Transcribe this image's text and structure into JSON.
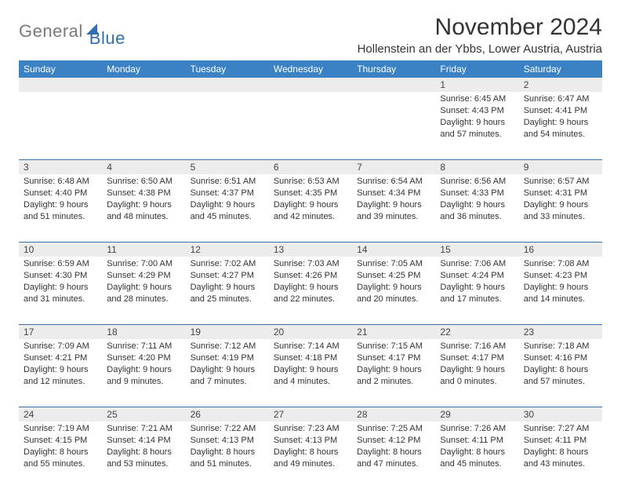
{
  "logo": {
    "text_gray": "General",
    "text_blue": "Blue"
  },
  "title": "November 2024",
  "location": "Hollenstein an der Ybbs, Lower Austria, Austria",
  "colors": {
    "header_bg": "#3b82c4",
    "header_fg": "#ffffff",
    "band_bg": "#ececec",
    "rule": "#3b6fa0",
    "text": "#333333",
    "logo_gray": "#7a7a7a",
    "logo_blue": "#2f6fb0"
  },
  "day_names": [
    "Sunday",
    "Monday",
    "Tuesday",
    "Wednesday",
    "Thursday",
    "Friday",
    "Saturday"
  ],
  "weeks": [
    {
      "nums": [
        "",
        "",
        "",
        "",
        "",
        "1",
        "2"
      ],
      "cells": [
        null,
        null,
        null,
        null,
        null,
        {
          "sunrise": "Sunrise: 6:45 AM",
          "sunset": "Sunset: 4:43 PM",
          "day1": "Daylight: 9 hours",
          "day2": "and 57 minutes."
        },
        {
          "sunrise": "Sunrise: 6:47 AM",
          "sunset": "Sunset: 4:41 PM",
          "day1": "Daylight: 9 hours",
          "day2": "and 54 minutes."
        }
      ]
    },
    {
      "nums": [
        "3",
        "4",
        "5",
        "6",
        "7",
        "8",
        "9"
      ],
      "cells": [
        {
          "sunrise": "Sunrise: 6:48 AM",
          "sunset": "Sunset: 4:40 PM",
          "day1": "Daylight: 9 hours",
          "day2": "and 51 minutes."
        },
        {
          "sunrise": "Sunrise: 6:50 AM",
          "sunset": "Sunset: 4:38 PM",
          "day1": "Daylight: 9 hours",
          "day2": "and 48 minutes."
        },
        {
          "sunrise": "Sunrise: 6:51 AM",
          "sunset": "Sunset: 4:37 PM",
          "day1": "Daylight: 9 hours",
          "day2": "and 45 minutes."
        },
        {
          "sunrise": "Sunrise: 6:53 AM",
          "sunset": "Sunset: 4:35 PM",
          "day1": "Daylight: 9 hours",
          "day2": "and 42 minutes."
        },
        {
          "sunrise": "Sunrise: 6:54 AM",
          "sunset": "Sunset: 4:34 PM",
          "day1": "Daylight: 9 hours",
          "day2": "and 39 minutes."
        },
        {
          "sunrise": "Sunrise: 6:56 AM",
          "sunset": "Sunset: 4:33 PM",
          "day1": "Daylight: 9 hours",
          "day2": "and 36 minutes."
        },
        {
          "sunrise": "Sunrise: 6:57 AM",
          "sunset": "Sunset: 4:31 PM",
          "day1": "Daylight: 9 hours",
          "day2": "and 33 minutes."
        }
      ]
    },
    {
      "nums": [
        "10",
        "11",
        "12",
        "13",
        "14",
        "15",
        "16"
      ],
      "cells": [
        {
          "sunrise": "Sunrise: 6:59 AM",
          "sunset": "Sunset: 4:30 PM",
          "day1": "Daylight: 9 hours",
          "day2": "and 31 minutes."
        },
        {
          "sunrise": "Sunrise: 7:00 AM",
          "sunset": "Sunset: 4:29 PM",
          "day1": "Daylight: 9 hours",
          "day2": "and 28 minutes."
        },
        {
          "sunrise": "Sunrise: 7:02 AM",
          "sunset": "Sunset: 4:27 PM",
          "day1": "Daylight: 9 hours",
          "day2": "and 25 minutes."
        },
        {
          "sunrise": "Sunrise: 7:03 AM",
          "sunset": "Sunset: 4:26 PM",
          "day1": "Daylight: 9 hours",
          "day2": "and 22 minutes."
        },
        {
          "sunrise": "Sunrise: 7:05 AM",
          "sunset": "Sunset: 4:25 PM",
          "day1": "Daylight: 9 hours",
          "day2": "and 20 minutes."
        },
        {
          "sunrise": "Sunrise: 7:06 AM",
          "sunset": "Sunset: 4:24 PM",
          "day1": "Daylight: 9 hours",
          "day2": "and 17 minutes."
        },
        {
          "sunrise": "Sunrise: 7:08 AM",
          "sunset": "Sunset: 4:23 PM",
          "day1": "Daylight: 9 hours",
          "day2": "and 14 minutes."
        }
      ]
    },
    {
      "nums": [
        "17",
        "18",
        "19",
        "20",
        "21",
        "22",
        "23"
      ],
      "cells": [
        {
          "sunrise": "Sunrise: 7:09 AM",
          "sunset": "Sunset: 4:21 PM",
          "day1": "Daylight: 9 hours",
          "day2": "and 12 minutes."
        },
        {
          "sunrise": "Sunrise: 7:11 AM",
          "sunset": "Sunset: 4:20 PM",
          "day1": "Daylight: 9 hours",
          "day2": "and 9 minutes."
        },
        {
          "sunrise": "Sunrise: 7:12 AM",
          "sunset": "Sunset: 4:19 PM",
          "day1": "Daylight: 9 hours",
          "day2": "and 7 minutes."
        },
        {
          "sunrise": "Sunrise: 7:14 AM",
          "sunset": "Sunset: 4:18 PM",
          "day1": "Daylight: 9 hours",
          "day2": "and 4 minutes."
        },
        {
          "sunrise": "Sunrise: 7:15 AM",
          "sunset": "Sunset: 4:17 PM",
          "day1": "Daylight: 9 hours",
          "day2": "and 2 minutes."
        },
        {
          "sunrise": "Sunrise: 7:16 AM",
          "sunset": "Sunset: 4:17 PM",
          "day1": "Daylight: 9 hours",
          "day2": "and 0 minutes."
        },
        {
          "sunrise": "Sunrise: 7:18 AM",
          "sunset": "Sunset: 4:16 PM",
          "day1": "Daylight: 8 hours",
          "day2": "and 57 minutes."
        }
      ]
    },
    {
      "nums": [
        "24",
        "25",
        "26",
        "27",
        "28",
        "29",
        "30"
      ],
      "cells": [
        {
          "sunrise": "Sunrise: 7:19 AM",
          "sunset": "Sunset: 4:15 PM",
          "day1": "Daylight: 8 hours",
          "day2": "and 55 minutes."
        },
        {
          "sunrise": "Sunrise: 7:21 AM",
          "sunset": "Sunset: 4:14 PM",
          "day1": "Daylight: 8 hours",
          "day2": "and 53 minutes."
        },
        {
          "sunrise": "Sunrise: 7:22 AM",
          "sunset": "Sunset: 4:13 PM",
          "day1": "Daylight: 8 hours",
          "day2": "and 51 minutes."
        },
        {
          "sunrise": "Sunrise: 7:23 AM",
          "sunset": "Sunset: 4:13 PM",
          "day1": "Daylight: 8 hours",
          "day2": "and 49 minutes."
        },
        {
          "sunrise": "Sunrise: 7:25 AM",
          "sunset": "Sunset: 4:12 PM",
          "day1": "Daylight: 8 hours",
          "day2": "and 47 minutes."
        },
        {
          "sunrise": "Sunrise: 7:26 AM",
          "sunset": "Sunset: 4:11 PM",
          "day1": "Daylight: 8 hours",
          "day2": "and 45 minutes."
        },
        {
          "sunrise": "Sunrise: 7:27 AM",
          "sunset": "Sunset: 4:11 PM",
          "day1": "Daylight: 8 hours",
          "day2": "and 43 minutes."
        }
      ]
    }
  ]
}
